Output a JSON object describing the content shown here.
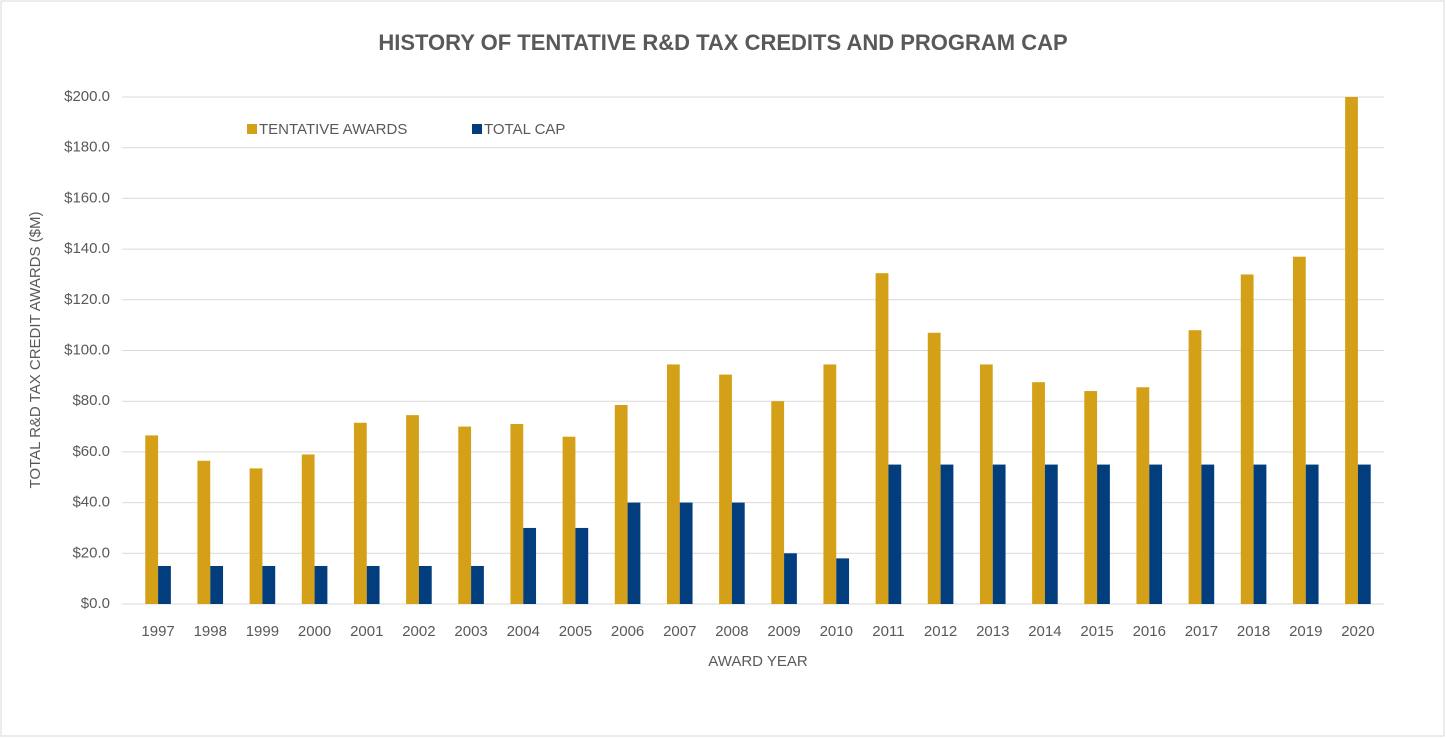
{
  "chart_data": {
    "type": "bar",
    "title": "HISTORY OF TENTATIVE R&D TAX CREDITS AND PROGRAM CAP",
    "x_label": "AWARD YEAR",
    "y_label": "TOTAL R&D TAX CREDIT AWARDS ($M)",
    "categories": [
      "1997",
      "1998",
      "1999",
      "2000",
      "2001",
      "2002",
      "2003",
      "2004",
      "2005",
      "2006",
      "2007",
      "2008",
      "2009",
      "2010",
      "2011",
      "2012",
      "2013",
      "2014",
      "2015",
      "2016",
      "2017",
      "2018",
      "2019",
      "2020"
    ],
    "series": [
      {
        "name": "TENTATIVE AWARDS",
        "color": "#D4A017",
        "values": [
          66.5,
          56.5,
          53.5,
          59,
          71.5,
          74.5,
          70,
          71,
          66,
          78.5,
          94.5,
          90.5,
          80,
          94.5,
          130.5,
          107,
          94.5,
          87.5,
          84,
          85.5,
          108,
          130,
          137,
          200
        ]
      },
      {
        "name": "TOTAL CAP",
        "color": "#023E7D",
        "values": [
          15,
          15,
          15,
          15,
          15,
          15,
          15,
          30,
          30,
          40,
          40,
          40,
          20,
          18,
          55,
          55,
          55,
          55,
          55,
          55,
          55,
          55,
          55,
          55
        ]
      }
    ],
    "ylim": [
      0,
      200
    ],
    "yticks": [
      {
        "value": 0,
        "label": "$0.0"
      },
      {
        "value": 20,
        "label": "$20.0"
      },
      {
        "value": 40,
        "label": "$40.0"
      },
      {
        "value": 60,
        "label": "$60.0"
      },
      {
        "value": 80,
        "label": "$80.0"
      },
      {
        "value": 100,
        "label": "$100.0"
      },
      {
        "value": 120,
        "label": "$120.0"
      },
      {
        "value": 140,
        "label": "$140.0"
      },
      {
        "value": 160,
        "label": "$160.0"
      },
      {
        "value": 180,
        "label": "$180.0"
      },
      {
        "value": 200,
        "label": "$200.0"
      }
    ],
    "grid": true,
    "legend": "top-left"
  }
}
